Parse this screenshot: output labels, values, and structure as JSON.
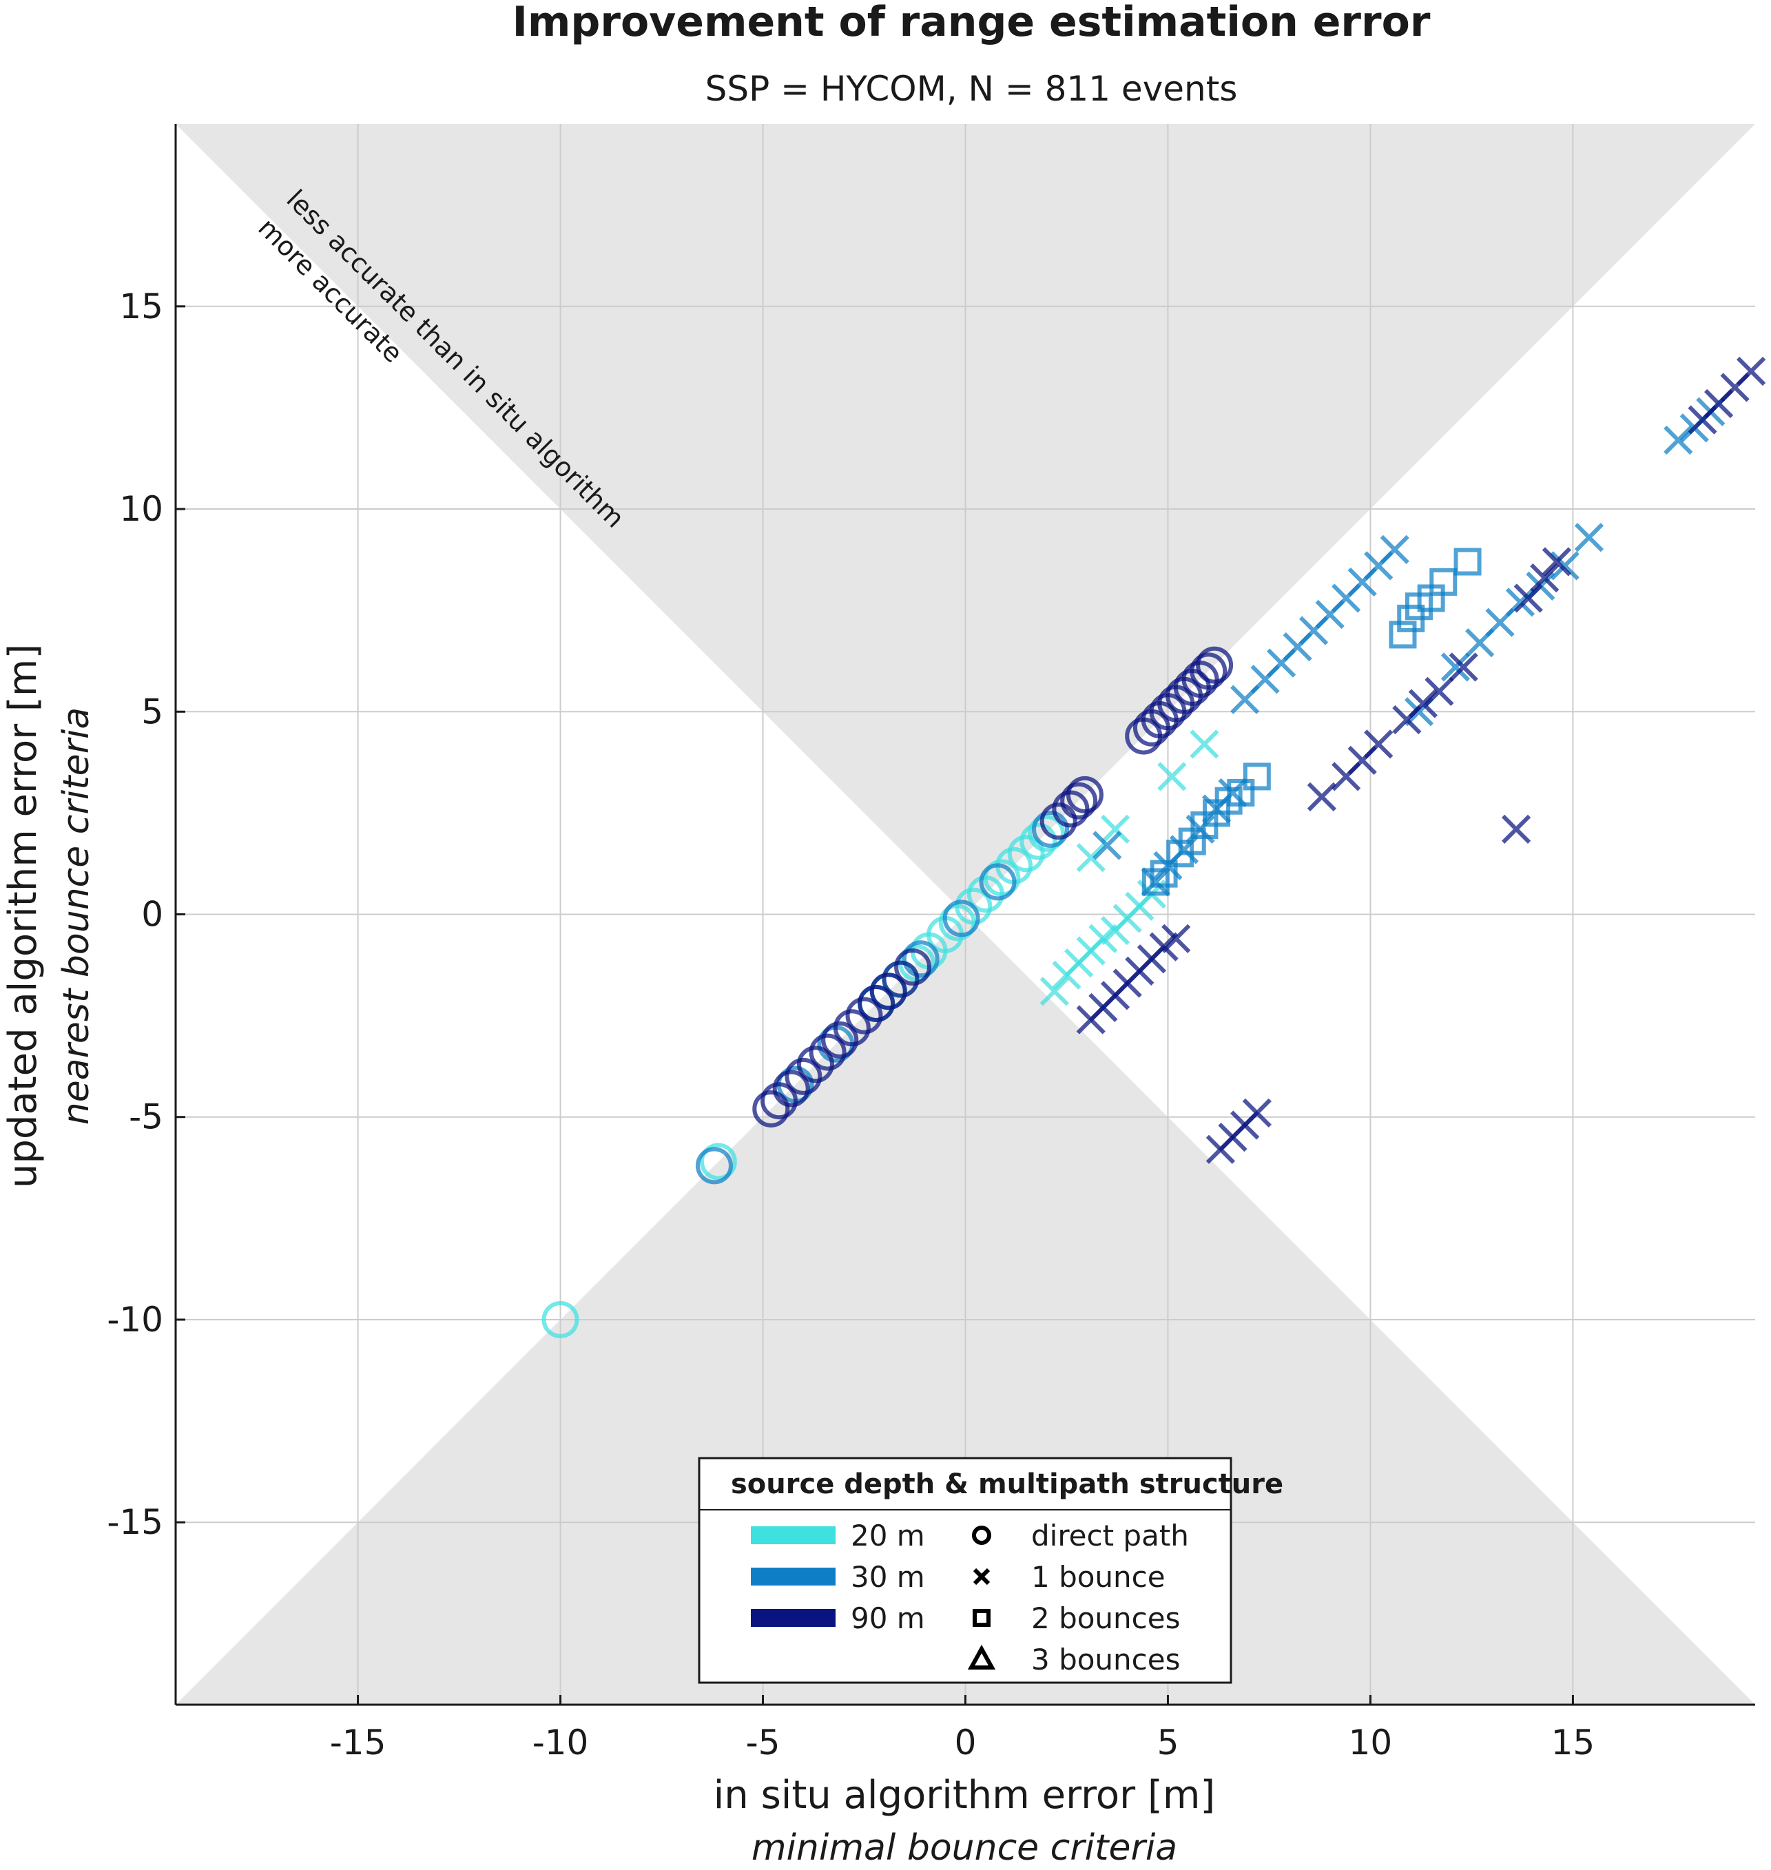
{
  "chart_data": {
    "type": "scatter",
    "title": "Improvement of range estimation error",
    "subtitle": "SSP = HYCOM, N = 811 events",
    "xlabel": "in situ algorithm error [m]",
    "xlabel_sub": "minimal bounce criteria",
    "ylabel": "updated algorithm error [m]",
    "ylabel_sub": "nearest bounce criteria",
    "xlim": [
      -19.5,
      19.5
    ],
    "ylim": [
      -19.5,
      19.5
    ],
    "xticks": [
      -15,
      -10,
      -5,
      0,
      5,
      10,
      15
    ],
    "yticks": [
      -15,
      -10,
      -5,
      0,
      5,
      10,
      15
    ],
    "xtick_labels": [
      "-15",
      "-10",
      "-5",
      "0",
      "5",
      "10",
      "15"
    ],
    "ytick_labels": [
      "-15",
      "-10",
      "-5",
      "0",
      "5",
      "10",
      "15"
    ],
    "grid": true,
    "shaded_region": "|y| > |x| (less accurate than in situ algorithm)",
    "annotations": [
      "less accurate than in situ algorithm",
      "more accurate"
    ],
    "colors": {
      "20 m": "#3fe0e0",
      "30 m": "#0e7fc6",
      "90 m": "#0a1480",
      "shade": "#e6e6e6",
      "grid": "#cccccc"
    },
    "legend": {
      "title": "source depth & multipath structure",
      "position": "bottom-center",
      "depths": [
        {
          "label": "20 m",
          "color": "#3fe0e0"
        },
        {
          "label": "30 m",
          "color": "#0e7fc6"
        },
        {
          "label": "90 m",
          "color": "#0a1480"
        }
      ],
      "markers": [
        {
          "label": "direct path",
          "shape": "circle"
        },
        {
          "label": "1 bounce",
          "shape": "x"
        },
        {
          "label": "2 bounces",
          "shape": "square"
        },
        {
          "label": "3 bounces",
          "shape": "triangle"
        }
      ]
    },
    "series": [
      {
        "depth": "20 m",
        "marker": "circle",
        "points": [
          [
            -10,
            -10
          ],
          [
            -6.1,
            -6.1
          ],
          [
            -1.6,
            -1.6
          ],
          [
            -1.2,
            -1.2
          ],
          [
            -0.9,
            -0.9
          ],
          [
            -0.5,
            -0.5
          ],
          [
            -0.2,
            -0.2
          ],
          [
            0.2,
            0.2
          ],
          [
            0.5,
            0.5
          ],
          [
            0.9,
            0.9
          ],
          [
            1.2,
            1.2
          ],
          [
            1.5,
            1.5
          ],
          [
            1.8,
            1.8
          ],
          [
            2.0,
            2.0
          ]
        ]
      },
      {
        "depth": "30 m",
        "marker": "circle",
        "points": [
          [
            -6.2,
            -6.2
          ],
          [
            -4.2,
            -4.2
          ],
          [
            -3.2,
            -3.2
          ],
          [
            -2.2,
            -2.2
          ],
          [
            -1.9,
            -1.9
          ],
          [
            -1.1,
            -1.1
          ],
          [
            -0.1,
            -0.1
          ],
          [
            0.8,
            0.8
          ],
          [
            2.1,
            2.1
          ]
        ]
      },
      {
        "depth": "90 m",
        "marker": "circle",
        "points": [
          [
            -4.8,
            -4.8
          ],
          [
            -4.6,
            -4.6
          ],
          [
            -4.3,
            -4.3
          ],
          [
            -4.0,
            -4.0
          ],
          [
            -3.7,
            -3.7
          ],
          [
            -3.4,
            -3.4
          ],
          [
            -3.1,
            -3.1
          ],
          [
            -2.8,
            -2.8
          ],
          [
            -2.5,
            -2.5
          ],
          [
            -2.2,
            -2.2
          ],
          [
            -1.9,
            -1.9
          ],
          [
            -1.6,
            -1.6
          ],
          [
            -1.3,
            -1.3
          ],
          [
            2.3,
            2.3
          ],
          [
            2.6,
            2.6
          ],
          [
            2.8,
            2.8
          ],
          [
            2.95,
            2.95
          ],
          [
            4.4,
            4.4
          ],
          [
            4.6,
            4.6
          ],
          [
            4.8,
            4.8
          ],
          [
            5.0,
            5.0
          ],
          [
            5.2,
            5.2
          ],
          [
            5.4,
            5.4
          ],
          [
            5.6,
            5.6
          ],
          [
            5.8,
            5.8
          ],
          [
            6.0,
            6.0
          ],
          [
            6.15,
            6.15
          ]
        ]
      },
      {
        "depth": "20 m",
        "marker": "x",
        "points": [
          [
            2.2,
            -1.9
          ],
          [
            2.5,
            -1.5
          ],
          [
            2.8,
            -1.2
          ],
          [
            3.1,
            -0.9
          ],
          [
            3.4,
            -0.6
          ],
          [
            3.7,
            -0.4
          ],
          [
            4.0,
            -0.1
          ],
          [
            4.3,
            0.2
          ],
          [
            4.6,
            0.5
          ],
          [
            3.1,
            1.4
          ],
          [
            3.7,
            2.1
          ],
          [
            5.1,
            3.4
          ],
          [
            5.9,
            4.2
          ]
        ]
      },
      {
        "depth": "30 m",
        "marker": "x",
        "points": [
          [
            3.5,
            1.7
          ],
          [
            4.7,
            0.8
          ],
          [
            5.0,
            1.2
          ],
          [
            5.4,
            1.6
          ],
          [
            5.8,
            2.1
          ],
          [
            6.2,
            2.6
          ],
          [
            6.6,
            3.0
          ],
          [
            6.9,
            5.3
          ],
          [
            7.4,
            5.8
          ],
          [
            7.8,
            6.2
          ],
          [
            8.2,
            6.6
          ],
          [
            8.6,
            7.0
          ],
          [
            9.0,
            7.4
          ],
          [
            9.4,
            7.8
          ],
          [
            9.8,
            8.2
          ],
          [
            10.2,
            8.6
          ],
          [
            10.6,
            9.0
          ],
          [
            11.2,
            5.0
          ],
          [
            12.1,
            6.1
          ],
          [
            12.7,
            6.7
          ],
          [
            13.2,
            7.2
          ],
          [
            13.7,
            7.7
          ],
          [
            14.2,
            8.1
          ],
          [
            14.8,
            8.6
          ],
          [
            15.4,
            9.3
          ],
          [
            17.6,
            11.7
          ],
          [
            18.0,
            12.0
          ],
          [
            18.4,
            12.4
          ]
        ]
      },
      {
        "depth": "90 m",
        "marker": "x",
        "points": [
          [
            3.1,
            -2.6
          ],
          [
            3.4,
            -2.3
          ],
          [
            3.7,
            -2.0
          ],
          [
            4.0,
            -1.7
          ],
          [
            4.3,
            -1.4
          ],
          [
            4.6,
            -1.1
          ],
          [
            4.9,
            -0.8
          ],
          [
            5.2,
            -0.6
          ],
          [
            6.3,
            -5.8
          ],
          [
            6.6,
            -5.5
          ],
          [
            6.9,
            -5.2
          ],
          [
            7.2,
            -4.9
          ],
          [
            8.8,
            2.9
          ],
          [
            9.4,
            3.4
          ],
          [
            9.8,
            3.8
          ],
          [
            10.2,
            4.2
          ],
          [
            10.9,
            4.8
          ],
          [
            11.3,
            5.2
          ],
          [
            11.7,
            5.5
          ],
          [
            12.3,
            6.1
          ],
          [
            13.6,
            2.1
          ],
          [
            13.9,
            7.8
          ],
          [
            14.3,
            8.3
          ],
          [
            14.6,
            8.7
          ],
          [
            18.2,
            12.2
          ],
          [
            18.6,
            12.6
          ],
          [
            19.0,
            13.0
          ],
          [
            19.4,
            13.4
          ]
        ]
      },
      {
        "depth": "30 m",
        "marker": "square",
        "points": [
          [
            4.7,
            0.8
          ],
          [
            4.9,
            1.0
          ],
          [
            5.3,
            1.5
          ],
          [
            5.6,
            1.8
          ],
          [
            5.9,
            2.2
          ],
          [
            6.2,
            2.5
          ],
          [
            6.5,
            2.8
          ],
          [
            6.8,
            3.0
          ],
          [
            7.2,
            3.4
          ],
          [
            10.8,
            6.9
          ],
          [
            11.0,
            7.3
          ],
          [
            11.2,
            7.6
          ],
          [
            11.5,
            7.8
          ],
          [
            11.8,
            8.2
          ],
          [
            12.4,
            8.7
          ]
        ]
      }
    ]
  }
}
